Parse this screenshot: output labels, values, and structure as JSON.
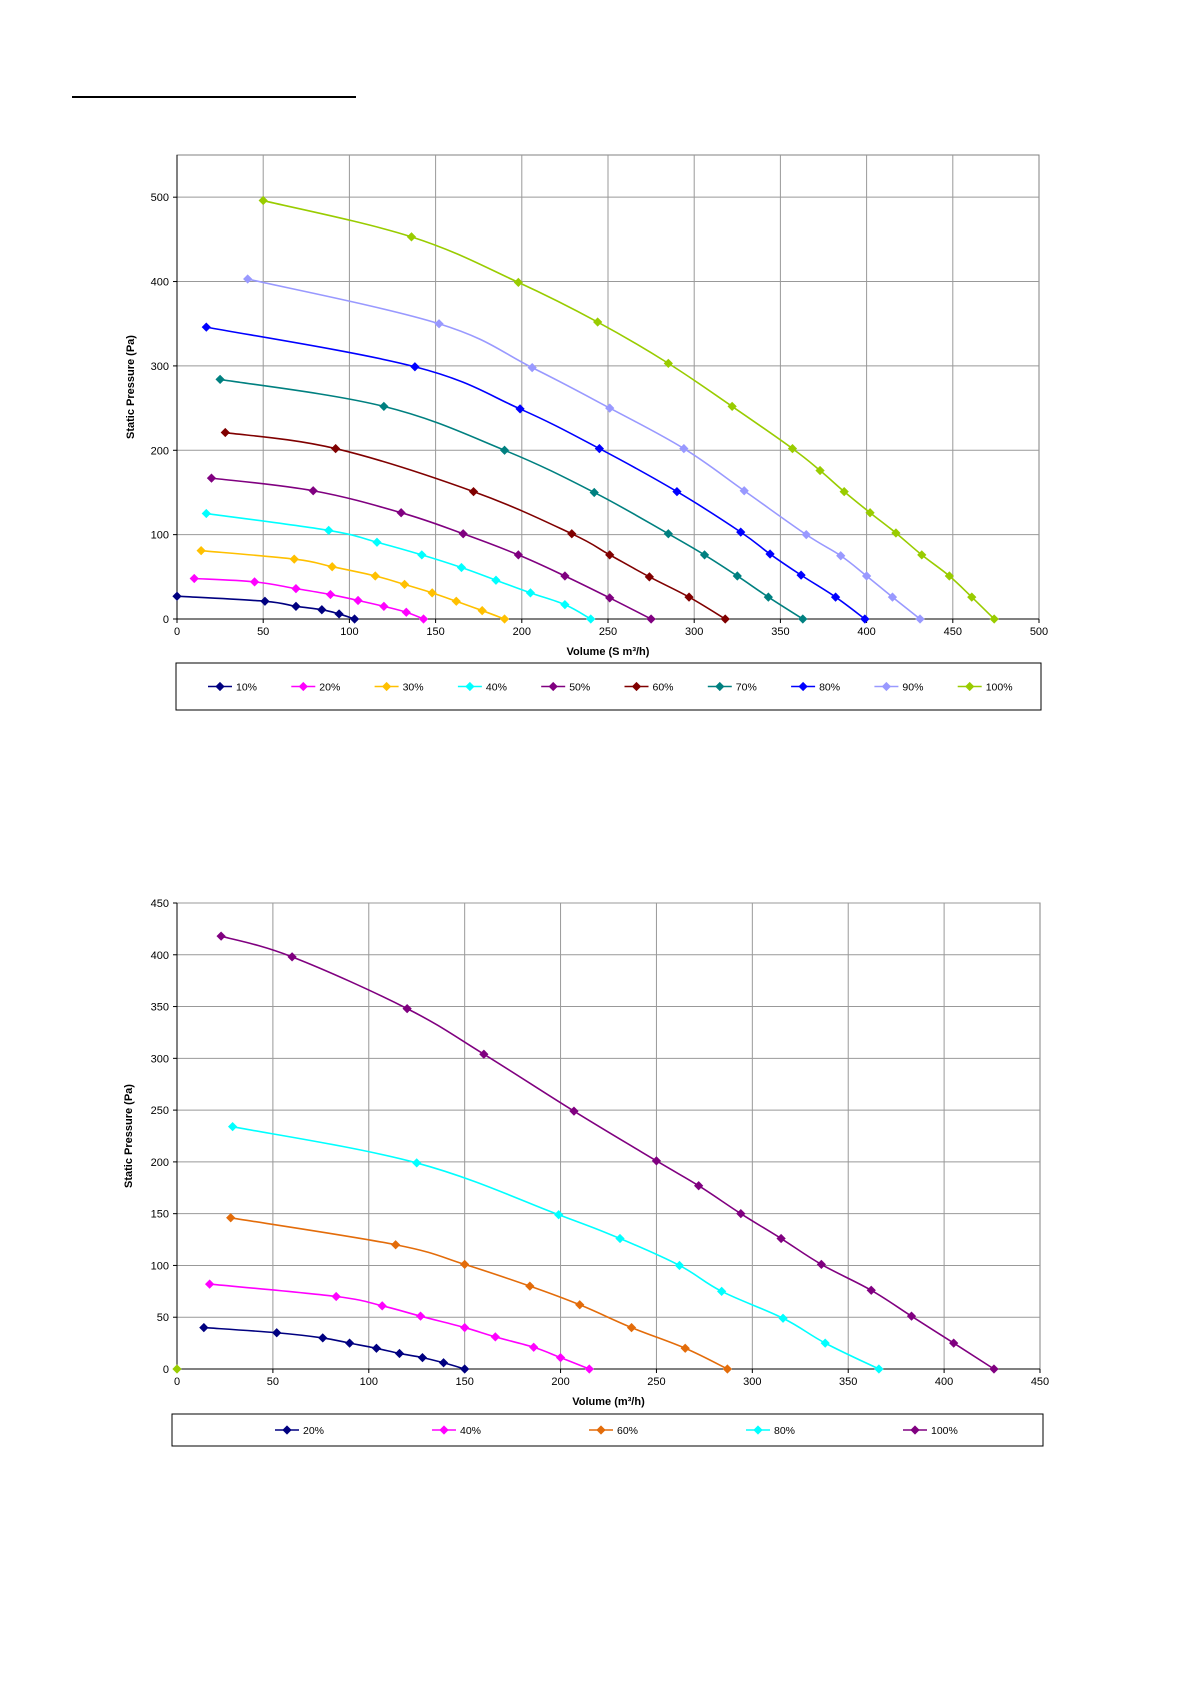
{
  "chart_data": [
    {
      "type": "line",
      "xlabel": "Volume  (S m³/h)",
      "ylabel": "Static Pressure (Pa)",
      "xlim": [
        0,
        500
      ],
      "ylim": [
        0,
        550
      ],
      "x_ticks": [
        0,
        50,
        100,
        150,
        200,
        250,
        300,
        350,
        400,
        450,
        500
      ],
      "y_ticks": [
        0,
        100,
        200,
        300,
        400,
        500
      ],
      "grid": true,
      "legend_position": "bottom",
      "series": [
        {
          "name": "10%",
          "color": "#000080",
          "marker": "diamond",
          "points": [
            [
              0,
              27
            ],
            [
              51,
              21
            ],
            [
              69,
              15
            ],
            [
              84,
              11
            ],
            [
              94,
              6
            ],
            [
              103,
              0
            ]
          ]
        },
        {
          "name": "20%",
          "color": "#ff00ff",
          "marker": "diamond",
          "points": [
            [
              10,
              48
            ],
            [
              45,
              44
            ],
            [
              69,
              36
            ],
            [
              89,
              29
            ],
            [
              105,
              22
            ],
            [
              120,
              15
            ],
            [
              133,
              8
            ],
            [
              143,
              0
            ]
          ]
        },
        {
          "name": "30%",
          "color": "#ffc000",
          "marker": "diamond",
          "points": [
            [
              14,
              81
            ],
            [
              68,
              71
            ],
            [
              90,
              62
            ],
            [
              115,
              51
            ],
            [
              132,
              41
            ],
            [
              148,
              31
            ],
            [
              162,
              21
            ],
            [
              177,
              10
            ],
            [
              190,
              0
            ]
          ]
        },
        {
          "name": "40%",
          "color": "#00ffff",
          "marker": "diamond",
          "points": [
            [
              17,
              125
            ],
            [
              88,
              105
            ],
            [
              116,
              91
            ],
            [
              142,
              76
            ],
            [
              165,
              61
            ],
            [
              185,
              46
            ],
            [
              205,
              31
            ],
            [
              225,
              17
            ],
            [
              240,
              0
            ]
          ]
        },
        {
          "name": "50%",
          "color": "#800080",
          "marker": "diamond",
          "points": [
            [
              20,
              167
            ],
            [
              79,
              152
            ],
            [
              130,
              126
            ],
            [
              166,
              101
            ],
            [
              198,
              76
            ],
            [
              225,
              51
            ],
            [
              251,
              25
            ],
            [
              275,
              0
            ]
          ]
        },
        {
          "name": "60%",
          "color": "#800000",
          "marker": "diamond",
          "points": [
            [
              28,
              221
            ],
            [
              92,
              202
            ],
            [
              172,
              151
            ],
            [
              229,
              101
            ],
            [
              251,
              76
            ],
            [
              274,
              50
            ],
            [
              297,
              26
            ],
            [
              318,
              0
            ]
          ]
        },
        {
          "name": "70%",
          "color": "#008080",
          "marker": "diamond",
          "points": [
            [
              25,
              284
            ],
            [
              120,
              252
            ],
            [
              190,
              200
            ],
            [
              242,
              150
            ],
            [
              285,
              101
            ],
            [
              306,
              76
            ],
            [
              325,
              51
            ],
            [
              343,
              26
            ],
            [
              363,
              0
            ]
          ]
        },
        {
          "name": "80%",
          "color": "#0000ff",
          "marker": "diamond",
          "points": [
            [
              17,
              346
            ],
            [
              138,
              299
            ],
            [
              199,
              249
            ],
            [
              245,
              202
            ],
            [
              290,
              151
            ],
            [
              327,
              103
            ],
            [
              344,
              77
            ],
            [
              362,
              52
            ],
            [
              382,
              26
            ],
            [
              399,
              0
            ]
          ]
        },
        {
          "name": "90%",
          "color": "#9999ff",
          "marker": "diamond",
          "points": [
            [
              41,
              403
            ],
            [
              152,
              350
            ],
            [
              206,
              298
            ],
            [
              251,
              250
            ],
            [
              294,
              202
            ],
            [
              329,
              152
            ],
            [
              365,
              100
            ],
            [
              385,
              75
            ],
            [
              400,
              51
            ],
            [
              415,
              26
            ],
            [
              431,
              0
            ]
          ]
        },
        {
          "name": "100%",
          "color": "#99cc00",
          "marker": "diamond",
          "points": [
            [
              50,
              496
            ],
            [
              136,
              453
            ],
            [
              198,
              399
            ],
            [
              244,
              352
            ],
            [
              285,
              303
            ],
            [
              322,
              252
            ],
            [
              357,
              202
            ],
            [
              373,
              176
            ],
            [
              387,
              151
            ],
            [
              402,
              126
            ],
            [
              417,
              102
            ],
            [
              448,
              51
            ],
            [
              432,
              76
            ],
            [
              461,
              26
            ],
            [
              474,
              0
            ]
          ]
        }
      ]
    },
    {
      "type": "line",
      "xlabel": "Volume  (m³/h)",
      "ylabel": "Static Pressure (Pa)",
      "xlim": [
        0,
        450
      ],
      "ylim": [
        0,
        450
      ],
      "x_ticks": [
        0,
        50,
        100,
        150,
        200,
        250,
        300,
        350,
        400,
        450
      ],
      "y_ticks": [
        0,
        50,
        100,
        150,
        200,
        250,
        300,
        350,
        400,
        450
      ],
      "grid": true,
      "legend_position": "bottom",
      "series": [
        {
          "name": "20%",
          "color": "#000080",
          "marker": "diamond",
          "points": [
            [
              14,
              40
            ],
            [
              52,
              35
            ],
            [
              76,
              30
            ],
            [
              90,
              25
            ],
            [
              104,
              20
            ],
            [
              116,
              15
            ],
            [
              128,
              11
            ],
            [
              139,
              6
            ],
            [
              150,
              0
            ]
          ]
        },
        {
          "name": "40%",
          "color": "#ff00ff",
          "marker": "diamond",
          "points": [
            [
              17,
              82
            ],
            [
              83,
              70
            ],
            [
              107,
              61
            ],
            [
              127,
              51
            ],
            [
              150,
              40
            ],
            [
              166,
              31
            ],
            [
              186,
              21
            ],
            [
              200,
              11
            ],
            [
              215,
              0
            ]
          ]
        },
        {
          "name": "60%",
          "color": "#e36c0a",
          "marker": "diamond",
          "points": [
            [
              28,
              146
            ],
            [
              114,
              120
            ],
            [
              150,
              101
            ],
            [
              184,
              80
            ],
            [
              210,
              62
            ],
            [
              237,
              40
            ],
            [
              265,
              20
            ],
            [
              287,
              0
            ]
          ]
        },
        {
          "name": "80%",
          "color": "#00ffff",
          "marker": "diamond",
          "points": [
            [
              29,
              234
            ],
            [
              125,
              199
            ],
            [
              199,
              149
            ],
            [
              231,
              126
            ],
            [
              262,
              100
            ],
            [
              284,
              75
            ],
            [
              316,
              49
            ],
            [
              338,
              25
            ],
            [
              366,
              0
            ]
          ]
        },
        {
          "name": "100%",
          "color": "#800080",
          "marker": "diamond",
          "points": [
            [
              23,
              418
            ],
            [
              60,
              398
            ],
            [
              120,
              348
            ],
            [
              160,
              304
            ],
            [
              207,
              249
            ],
            [
              250,
              201
            ],
            [
              272,
              177
            ],
            [
              294,
              150
            ],
            [
              315,
              126
            ],
            [
              336,
              101
            ],
            [
              362,
              76
            ],
            [
              383,
              51
            ],
            [
              405,
              25
            ],
            [
              426,
              0
            ]
          ]
        }
      ],
      "origin_marker": {
        "x": 0,
        "y": 0,
        "color": "#99cc00"
      }
    }
  ]
}
